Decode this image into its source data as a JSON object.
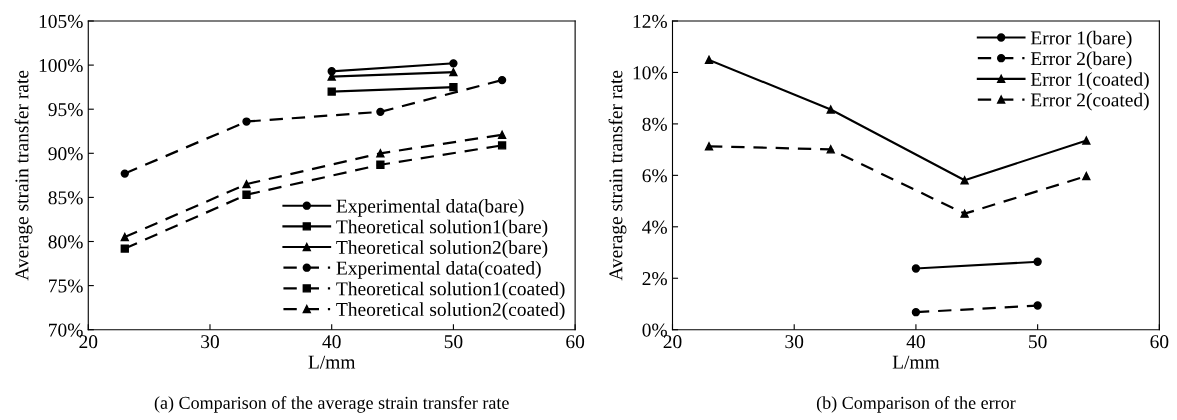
{
  "chart_data": [
    {
      "type": "line",
      "xlabel": "L/mm",
      "ylabel": "Average strain transfer rate",
      "xlim": [
        20,
        60
      ],
      "xticks": [
        20,
        30,
        40,
        50,
        60
      ],
      "ylim": [
        70,
        105
      ],
      "yticks": [
        {
          "value": 70,
          "label": "70%"
        },
        {
          "value": 75,
          "label": "75%"
        },
        {
          "value": 80,
          "label": "80%"
        },
        {
          "value": 85,
          "label": "85%"
        },
        {
          "value": 90,
          "label": "90%"
        },
        {
          "value": 95,
          "label": "95%"
        },
        {
          "value": 100,
          "label": "100%"
        },
        {
          "value": 105,
          "label": "105%"
        }
      ],
      "grid": false,
      "legend": "bottom right",
      "annotations": [
        "(a) Comparison of the average strain transfer rate"
      ],
      "series": [
        {
          "name": "Experimental data(bare)",
          "color": "#000000",
          "marker": "circle",
          "line_style": "solid",
          "x": [
            40,
            50
          ],
          "values": [
            99.3,
            100.2
          ]
        },
        {
          "name": "Theoretical solution1(bare)",
          "color": "#000000",
          "marker": "square",
          "line_style": "solid",
          "x": [
            40,
            50
          ],
          "values": [
            97.0,
            97.5
          ]
        },
        {
          "name": "Theoretical solution2(bare)",
          "color": "#000000",
          "marker": "triangle",
          "line_style": "solid",
          "x": [
            40,
            50
          ],
          "values": [
            98.7,
            99.2
          ]
        },
        {
          "name": "Experimental data(coated)",
          "color": "#000000",
          "marker": "circle",
          "line_style": "dashed",
          "x": [
            23,
            33,
            44,
            54
          ],
          "values": [
            87.7,
            93.6,
            94.7,
            98.3
          ]
        },
        {
          "name": "Theoretical solution1(coated)",
          "color": "#000000",
          "marker": "square",
          "line_style": "dashed",
          "x": [
            23,
            33,
            44,
            54
          ],
          "values": [
            79.2,
            85.3,
            88.7,
            90.9
          ]
        },
        {
          "name": "Theoretical solution2(coated)",
          "color": "#000000",
          "marker": "triangle",
          "line_style": "dashed",
          "x": [
            23,
            33,
            44,
            54
          ],
          "values": [
            80.5,
            86.5,
            90.0,
            92.1
          ]
        }
      ]
    },
    {
      "type": "line",
      "xlabel": "L/mm",
      "ylabel": "Average strain transfer rate",
      "xlim": [
        20,
        60
      ],
      "xticks": [
        20,
        30,
        40,
        50,
        60
      ],
      "ylim": [
        0,
        12
      ],
      "yticks": [
        {
          "value": 0,
          "label": "0%"
        },
        {
          "value": 2,
          "label": "2%"
        },
        {
          "value": 4,
          "label": "4%"
        },
        {
          "value": 6,
          "label": "6%"
        },
        {
          "value": 8,
          "label": "8%"
        },
        {
          "value": 10,
          "label": "10%"
        },
        {
          "value": 12,
          "label": "12%"
        }
      ],
      "grid": false,
      "legend": "top right",
      "annotations": [
        "(b) Comparison of the error"
      ],
      "series": [
        {
          "name": "Error 1(bare)",
          "color": "#000000",
          "marker": "circle",
          "line_style": "solid",
          "x": [
            40,
            50
          ],
          "values": [
            2.38,
            2.64
          ]
        },
        {
          "name": "Error 2(bare)",
          "color": "#000000",
          "marker": "circle",
          "line_style": "dashed",
          "x": [
            40,
            50
          ],
          "values": [
            0.68,
            0.94
          ]
        },
        {
          "name": "Error 1(coated)",
          "color": "#000000",
          "marker": "triangle",
          "line_style": "solid",
          "x": [
            23,
            33,
            44,
            54
          ],
          "values": [
            10.49,
            8.56,
            5.81,
            7.35
          ]
        },
        {
          "name": "Error 2(coated)",
          "color": "#000000",
          "marker": "triangle",
          "line_style": "dashed",
          "x": [
            23,
            33,
            44,
            54
          ],
          "values": [
            7.13,
            7.01,
            4.51,
            5.97
          ]
        }
      ]
    }
  ]
}
